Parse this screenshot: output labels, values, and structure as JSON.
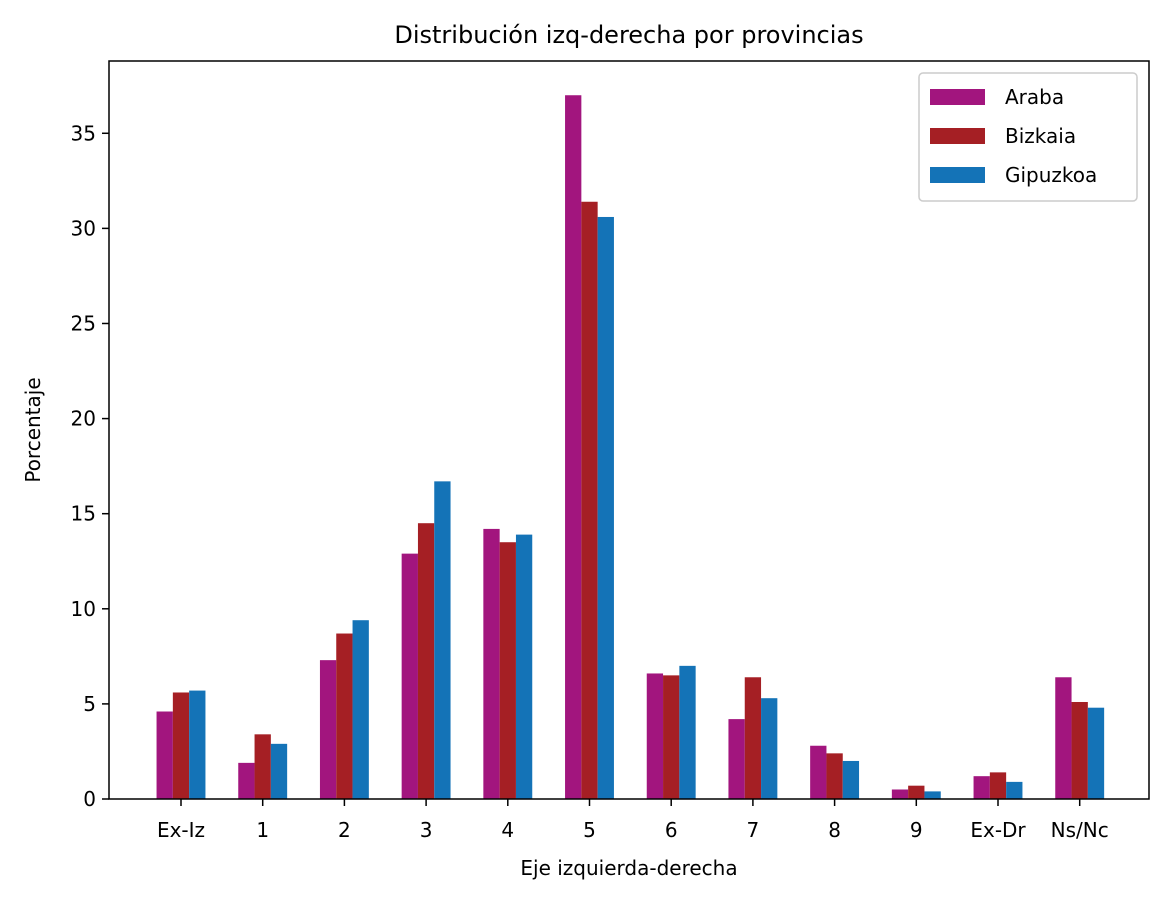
{
  "chart_data": {
    "type": "bar",
    "title": "Distribución izq-derecha por provincias",
    "xlabel": "Eje izquierda-derecha",
    "ylabel": "Porcentaje",
    "categories": [
      "Ex-Iz",
      "1",
      "2",
      "3",
      "4",
      "5",
      "6",
      "7",
      "8",
      "9",
      "Ex-Dr",
      "Ns/Nc"
    ],
    "series": [
      {
        "name": "Araba",
        "color": "#a2157e",
        "values": [
          4.6,
          1.9,
          7.3,
          12.9,
          14.2,
          37.0,
          6.6,
          4.2,
          2.8,
          0.5,
          1.2,
          6.4
        ]
      },
      {
        "name": "Bizkaia",
        "color": "#a51f24",
        "values": [
          5.6,
          3.4,
          8.7,
          14.5,
          13.5,
          31.4,
          6.5,
          6.4,
          2.4,
          0.7,
          1.4,
          5.1
        ]
      },
      {
        "name": "Gipuzkoa",
        "color": "#1473b7",
        "values": [
          5.7,
          2.9,
          9.4,
          16.7,
          13.9,
          30.6,
          7.0,
          5.3,
          2.0,
          0.4,
          0.9,
          4.8
        ]
      }
    ],
    "ylim": [
      0,
      38.8
    ],
    "yticks": [
      0,
      5,
      10,
      15,
      20,
      25,
      30,
      35
    ],
    "grid": false,
    "legend_position": "top-right"
  }
}
